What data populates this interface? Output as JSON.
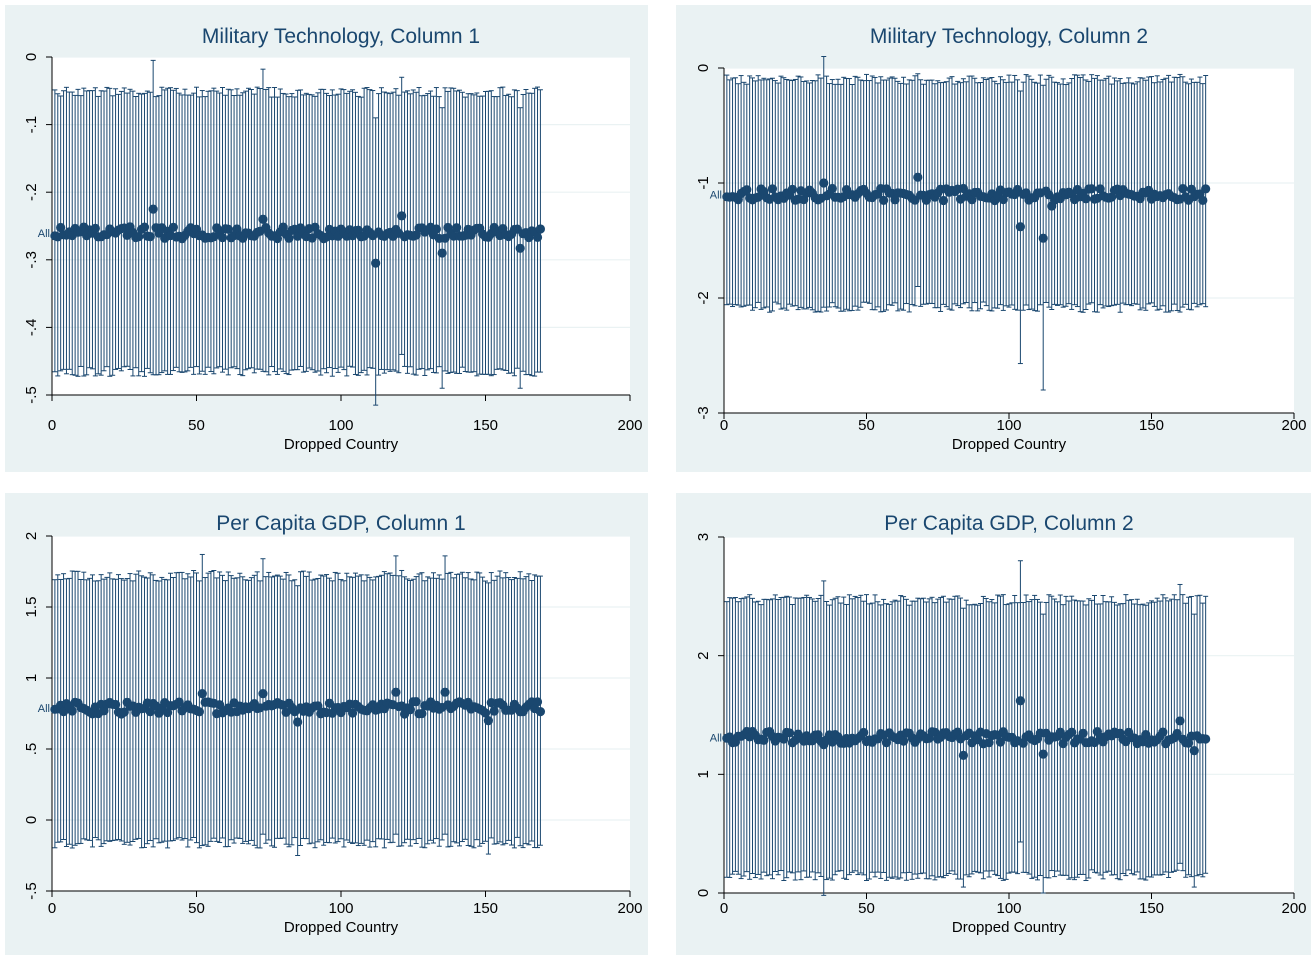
{
  "style": {
    "panel_bg": "#eaf2f3",
    "plot_bg": "#ffffff",
    "grid": "#eaf2f3",
    "series_color": "#1a476f",
    "title_color": "#1a476f"
  },
  "chart_data": [
    {
      "type": "scatter",
      "title": "Military Technology, Column 1",
      "xlabel": "Dropped Country",
      "ylabel": "",
      "xlim": [
        0,
        200
      ],
      "ylim": [
        -0.5,
        0
      ],
      "xticks": [
        "0",
        "50",
        "100",
        "150",
        "200"
      ],
      "yticks": [
        "0",
        "-.1",
        "-.2",
        "-.3",
        "-.4",
        "-.5"
      ],
      "ytick_values": [
        0,
        -0.1,
        -0.2,
        -0.3,
        -0.4,
        -0.5
      ],
      "ytick_labels_rotated": true,
      "reference_label": "All",
      "reference_value": -0.26,
      "grid": true,
      "n_points": 170,
      "x_range": [
        1,
        169
      ],
      "point_estimate_typical": -0.26,
      "ci_lower_typical": -0.465,
      "ci_upper_typical": -0.052,
      "series": [
        {
          "type": "scatter_with_error_bars",
          "outliers": [
            {
              "x": 35,
              "y": -0.225,
              "lo": -0.47,
              "hi": -0.005
            },
            {
              "x": 73,
              "y": -0.24,
              "lo": -0.465,
              "hi": -0.018
            },
            {
              "x": 112,
              "y": -0.305,
              "lo": -0.515,
              "hi": -0.09
            },
            {
              "x": 121,
              "y": -0.235,
              "lo": -0.44,
              "hi": -0.03
            },
            {
              "x": 135,
              "y": -0.29,
              "lo": -0.49,
              "hi": -0.075
            },
            {
              "x": 162,
              "y": -0.283,
              "lo": -0.49,
              "hi": -0.075
            }
          ]
        }
      ]
    },
    {
      "type": "scatter",
      "title": "Military Technology, Column 2",
      "xlabel": "Dropped Country",
      "ylabel": "",
      "xlim": [
        0,
        200
      ],
      "ylim": [
        -3,
        0
      ],
      "xticks": [
        "0",
        "50",
        "100",
        "150",
        "200"
      ],
      "yticks": [
        "0",
        "-1",
        "-2",
        "-3"
      ],
      "ytick_values": [
        0,
        -1,
        -2,
        -3
      ],
      "ytick_labels_rotated": true,
      "reference_label": "All",
      "reference_value": -1.1,
      "grid": true,
      "n_points": 170,
      "x_range": [
        1,
        169
      ],
      "point_estimate_typical": -1.1,
      "ci_lower_typical": -2.08,
      "ci_upper_typical": -0.1,
      "series": [
        {
          "type": "scatter_with_error_bars",
          "outliers": [
            {
              "x": 35,
              "y": -1.0,
              "lo": -2.08,
              "hi": 0.1
            },
            {
              "x": 68,
              "y": -0.95,
              "lo": -1.9,
              "hi": -0.05
            },
            {
              "x": 104,
              "y": -1.38,
              "lo": -2.57,
              "hi": -0.2
            },
            {
              "x": 112,
              "y": -1.48,
              "lo": -2.8,
              "hi": -0.15
            },
            {
              "x": 115,
              "y": -1.2,
              "lo": -2.1,
              "hi": -0.08
            }
          ]
        }
      ]
    },
    {
      "type": "scatter",
      "title": "Per Capita GDP, Column 1",
      "xlabel": "Dropped Country",
      "ylabel": "",
      "xlim": [
        0,
        200
      ],
      "ylim": [
        -0.5,
        2
      ],
      "xticks": [
        "0",
        "50",
        "100",
        "150",
        "200"
      ],
      "yticks": [
        "2",
        "1.5",
        "1",
        ".5",
        "0",
        "-.5"
      ],
      "ytick_values": [
        2,
        1.5,
        1,
        0.5,
        0,
        -0.5
      ],
      "ytick_labels_rotated": true,
      "reference_label": "All",
      "reference_value": 0.79,
      "grid": true,
      "n_points": 170,
      "x_range": [
        1,
        169
      ],
      "point_estimate_typical": 0.79,
      "ci_lower_typical": -0.16,
      "ci_upper_typical": 1.72,
      "series": [
        {
          "type": "scatter_with_error_bars",
          "outliers": [
            {
              "x": 52,
              "y": 0.89,
              "lo": -0.18,
              "hi": 1.87
            },
            {
              "x": 73,
              "y": 0.89,
              "lo": -0.1,
              "hi": 1.84
            },
            {
              "x": 85,
              "y": 0.69,
              "lo": -0.25,
              "hi": 1.65
            },
            {
              "x": 119,
              "y": 0.9,
              "lo": -0.1,
              "hi": 1.86
            },
            {
              "x": 136,
              "y": 0.9,
              "lo": -0.1,
              "hi": 1.86
            },
            {
              "x": 151,
              "y": 0.7,
              "lo": -0.24,
              "hi": 1.67
            }
          ]
        }
      ]
    },
    {
      "type": "scatter",
      "title": "Per Capita GDP, Column 2",
      "xlabel": "Dropped Country",
      "ylabel": "",
      "xlim": [
        0,
        200
      ],
      "ylim": [
        0,
        3
      ],
      "xticks": [
        "0",
        "50",
        "100",
        "150",
        "200"
      ],
      "yticks": [
        "3",
        "2",
        "1",
        "0"
      ],
      "ytick_values": [
        3,
        2,
        1,
        0
      ],
      "ytick_labels_rotated": true,
      "reference_label": "All",
      "reference_value": 1.31,
      "grid": true,
      "n_points": 170,
      "x_range": [
        1,
        169
      ],
      "point_estimate_typical": 1.31,
      "ci_lower_typical": 0.15,
      "ci_upper_typical": 2.47,
      "series": [
        {
          "type": "scatter_with_error_bars",
          "outliers": [
            {
              "x": 35,
              "y": 1.25,
              "lo": -0.02,
              "hi": 2.63
            },
            {
              "x": 84,
              "y": 1.16,
              "lo": 0.05,
              "hi": 2.4
            },
            {
              "x": 104,
              "y": 1.62,
              "lo": 0.43,
              "hi": 2.8
            },
            {
              "x": 112,
              "y": 1.17,
              "lo": 0.0,
              "hi": 2.35
            },
            {
              "x": 160,
              "y": 1.45,
              "lo": 0.25,
              "hi": 2.6
            },
            {
              "x": 165,
              "y": 1.2,
              "lo": 0.05,
              "hi": 2.35
            }
          ]
        }
      ]
    }
  ]
}
